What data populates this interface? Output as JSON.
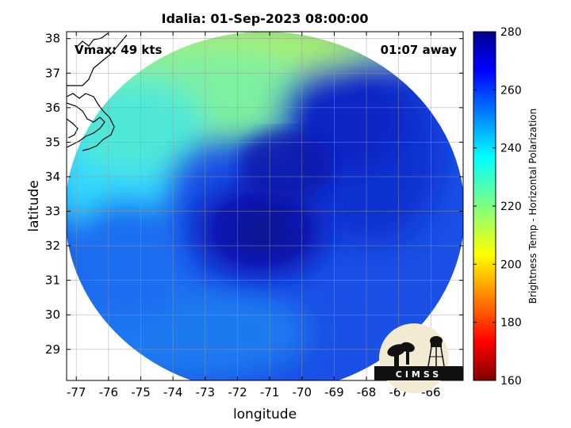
{
  "chart_data": {
    "type": "heatmap",
    "title": "Idalia: 01-Sep-2023 08:00:00",
    "xlabel": "longitude",
    "ylabel": "latitude",
    "xlim": [
      -77.3,
      -65.0
    ],
    "ylim": [
      28.1,
      38.2
    ],
    "x_ticks": [
      "-77",
      "-76",
      "-75",
      "-74",
      "-73",
      "-72",
      "-71",
      "-70",
      "-69",
      "-68",
      "-67",
      "-66"
    ],
    "x_tick_values": [
      -77,
      -76,
      -75,
      -74,
      -73,
      -72,
      -71,
      -70,
      -69,
      -68,
      -67,
      -66
    ],
    "y_ticks": [
      "29",
      "30",
      "31",
      "32",
      "33",
      "34",
      "35",
      "36",
      "37",
      "38"
    ],
    "y_tick_values": [
      29,
      30,
      31,
      32,
      33,
      34,
      35,
      36,
      37,
      38
    ],
    "grid": true,
    "annotations": {
      "vmax": "Vmax: 49 kts",
      "time_offset": "01:07 away"
    },
    "colorbar": {
      "label": "Brightness Temp - Horizontal Polarization",
      "range": [
        160,
        280
      ],
      "ticks": [
        "160",
        "180",
        "200",
        "220",
        "240",
        "260",
        "280"
      ],
      "tick_values": [
        160,
        180,
        200,
        220,
        240,
        260,
        280
      ],
      "colormap": "jet"
    },
    "swath": {
      "center_lon": -71.2,
      "center_lat": 33.0,
      "background_temp": 258,
      "features": [
        {
          "region": "northwest",
          "temp": 215
        },
        {
          "region": "west",
          "temp": 238
        },
        {
          "region": "storm-core",
          "temp": 272
        },
        {
          "region": "south",
          "temp": 252
        }
      ]
    },
    "logo": "CIMSS"
  }
}
